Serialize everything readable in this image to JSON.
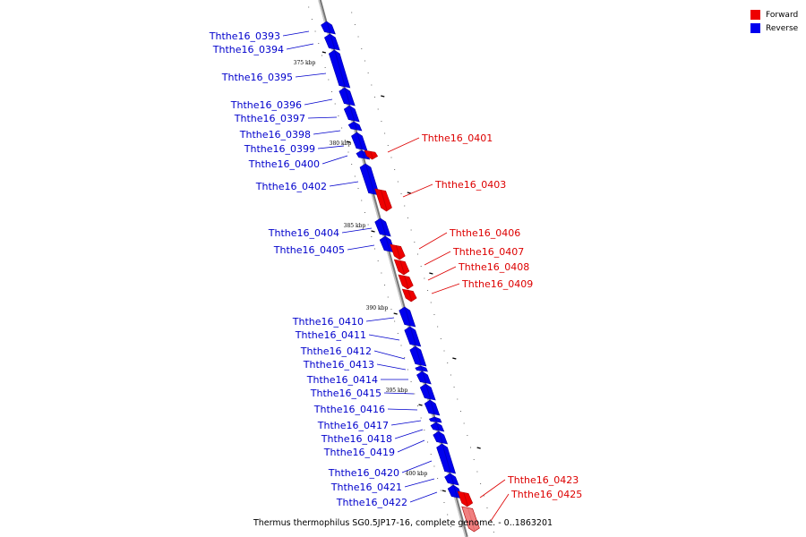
{
  "legend": {
    "forward_label": "Forward",
    "reverse_label": "Reverse",
    "forward_color": "#ff0000",
    "reverse_color": "#0000ff"
  },
  "caption": "Thermus thermophilus SG0.5JP17-16, complete genome. - 0..1863201",
  "tick_labels": [
    "375 kbp",
    "380 kbp",
    "385 kbp",
    "390 kbp",
    "395 kbp",
    "400 kbp"
  ],
  "genes": [
    {
      "id": "Ththe16_0393",
      "strand": "reverse"
    },
    {
      "id": "Ththe16_0394",
      "strand": "reverse"
    },
    {
      "id": "Ththe16_0395",
      "strand": "reverse"
    },
    {
      "id": "Ththe16_0396",
      "strand": "reverse"
    },
    {
      "id": "Ththe16_0397",
      "strand": "reverse"
    },
    {
      "id": "Ththe16_0398",
      "strand": "reverse"
    },
    {
      "id": "Ththe16_0399",
      "strand": "reverse"
    },
    {
      "id": "Ththe16_0400",
      "strand": "reverse"
    },
    {
      "id": "Ththe16_0401",
      "strand": "forward"
    },
    {
      "id": "Ththe16_0402",
      "strand": "reverse"
    },
    {
      "id": "Ththe16_0403",
      "strand": "forward"
    },
    {
      "id": "Ththe16_0404",
      "strand": "reverse"
    },
    {
      "id": "Ththe16_0405",
      "strand": "reverse"
    },
    {
      "id": "Ththe16_0406",
      "strand": "forward"
    },
    {
      "id": "Ththe16_0407",
      "strand": "forward"
    },
    {
      "id": "Ththe16_0408",
      "strand": "forward"
    },
    {
      "id": "Ththe16_0409",
      "strand": "forward"
    },
    {
      "id": "Ththe16_0410",
      "strand": "reverse"
    },
    {
      "id": "Ththe16_0411",
      "strand": "reverse"
    },
    {
      "id": "Ththe16_0412",
      "strand": "reverse"
    },
    {
      "id": "Ththe16_0413",
      "strand": "reverse"
    },
    {
      "id": "Ththe16_0414",
      "strand": "reverse"
    },
    {
      "id": "Ththe16_0415",
      "strand": "reverse"
    },
    {
      "id": "Ththe16_0416",
      "strand": "reverse"
    },
    {
      "id": "Ththe16_0417",
      "strand": "reverse"
    },
    {
      "id": "Ththe16_0418",
      "strand": "reverse"
    },
    {
      "id": "Ththe16_0419",
      "strand": "reverse"
    },
    {
      "id": "Ththe16_0420",
      "strand": "reverse"
    },
    {
      "id": "Ththe16_0421",
      "strand": "reverse"
    },
    {
      "id": "Ththe16_0422",
      "strand": "reverse"
    },
    {
      "id": "Ththe16_0423",
      "strand": "forward"
    },
    {
      "id": "Ththe16_0425",
      "strand": "forward"
    }
  ]
}
